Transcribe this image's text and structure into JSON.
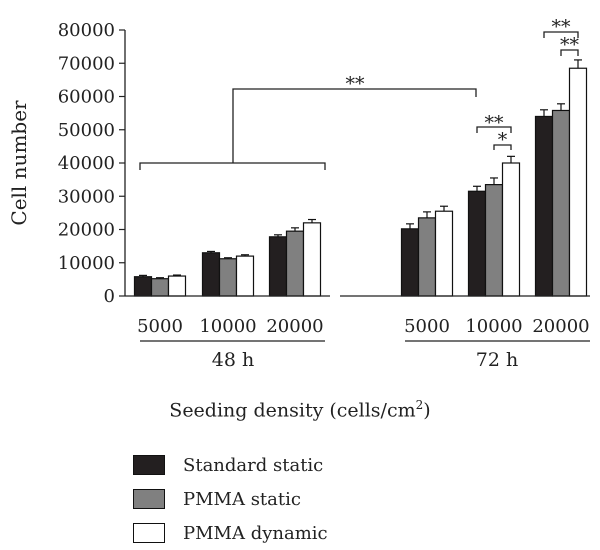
{
  "chart_data": {
    "type": "bar",
    "ylabel": "Cell number",
    "ylim": [
      0,
      80000
    ],
    "y_ticks": [
      "0",
      "10000",
      "20000",
      "30000",
      "40000",
      "50000",
      "60000",
      "70000",
      "80000"
    ],
    "groups": [
      {
        "label": "48 h",
        "categories": [
          "5000",
          "10000",
          "20000"
        ]
      },
      {
        "label": "72 h",
        "categories": [
          "5000",
          "10000",
          "20000"
        ]
      }
    ],
    "series": [
      {
        "name": "Standard static",
        "color": "#231f20",
        "values": [
          5800,
          13000,
          17800,
          20200,
          31500,
          54000
        ],
        "errors": [
          400,
          400,
          600,
          1500,
          1500,
          2000
        ]
      },
      {
        "name": "PMMA static",
        "color": "#808080",
        "values": [
          5200,
          11200,
          19500,
          23500,
          33500,
          55800
        ],
        "errors": [
          300,
          300,
          1000,
          1800,
          2000,
          2000
        ]
      },
      {
        "name": "PMMA dynamic",
        "color": "#ffffff",
        "values": [
          6000,
          12000,
          22000,
          25500,
          40000,
          68500
        ],
        "errors": [
          300,
          400,
          1000,
          1500,
          2000,
          2500
        ]
      }
    ],
    "significance": [
      {
        "label": "**",
        "between": "48 h vs 72 h 10000"
      },
      {
        "label": "**",
        "between": "72 h 10000: Standard static vs PMMA dynamic"
      },
      {
        "label": "*",
        "between": "72 h 10000: PMMA static vs PMMA dynamic"
      },
      {
        "label": "**",
        "between": "72 h 20000: Standard static vs PMMA dynamic"
      },
      {
        "label": "**",
        "between": "72 h 20000: PMMA static vs PMMA dynamic"
      }
    ],
    "xlabel_main": "Seeding density (cells/cm",
    "xlabel_sup": "2",
    "xlabel_tail": ")",
    "legend_position": "bottom-left"
  }
}
